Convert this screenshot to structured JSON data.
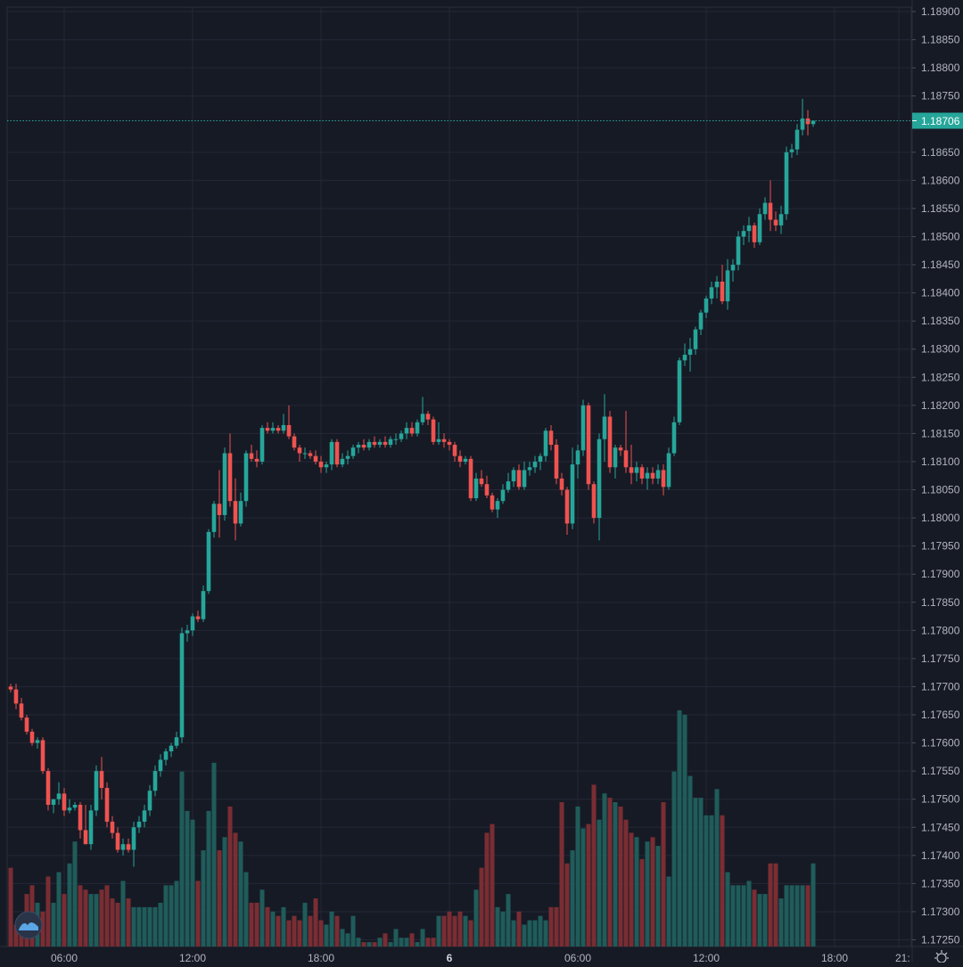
{
  "chart_data": {
    "type": "candlestick",
    "title": "",
    "xlabel": "",
    "ylabel": "",
    "ylim": [
      1.17225,
      1.18915
    ],
    "grid": true,
    "last_price": 1.18706,
    "last_price_label": "1.18706",
    "price_ticks": [
      "1.18900",
      "1.18850",
      "1.18800",
      "1.18750",
      "1.18650",
      "1.18600",
      "1.18550",
      "1.18500",
      "1.18450",
      "1.18400",
      "1.18350",
      "1.18300",
      "1.18250",
      "1.18200",
      "1.18150",
      "1.18100",
      "1.18050",
      "1.18000",
      "1.17950",
      "1.17900",
      "1.17850",
      "1.17800",
      "1.17750",
      "1.17700",
      "1.17650",
      "1.17600",
      "1.17550",
      "1.17500",
      "1.17450",
      "1.17400",
      "1.17350",
      "1.17300",
      "1.17250"
    ],
    "time_ticks": [
      {
        "label": "06:00",
        "bar": 10,
        "bold": false
      },
      {
        "label": "12:00",
        "bar": 34,
        "bold": false
      },
      {
        "label": "18:00",
        "bar": 58,
        "bold": false
      },
      {
        "label": "6",
        "bar": 82,
        "bold": true
      },
      {
        "label": "06:00",
        "bar": 106,
        "bold": false
      },
      {
        "label": "12:00",
        "bar": 130,
        "bold": false
      },
      {
        "label": "18:00",
        "bar": 154,
        "bold": false
      },
      {
        "label": "21:",
        "bar": 166,
        "bold": false
      }
    ],
    "colors": {
      "up": "#26a69a",
      "down": "#ef5350",
      "vol_up": "#1f5c5a",
      "vol_down": "#7a2d33",
      "grid": "#242836",
      "text": "#b2b5be",
      "background": "#161a25"
    },
    "candles": [
      [
        1.177,
        1.17705,
        1.1769,
        1.17695
      ],
      [
        1.17695,
        1.17705,
        1.1766,
        1.1767
      ],
      [
        1.1767,
        1.1768,
        1.1764,
        1.17645
      ],
      [
        1.17645,
        1.1765,
        1.17615,
        1.1762
      ],
      [
        1.1762,
        1.17625,
        1.17595,
        1.176
      ],
      [
        1.176,
        1.1761,
        1.1759,
        1.17605
      ],
      [
        1.17605,
        1.1761,
        1.17545,
        1.1755
      ],
      [
        1.1755,
        1.17555,
        1.1748,
        1.1749
      ],
      [
        1.1749,
        1.175,
        1.17475,
        1.175
      ],
      [
        1.175,
        1.1753,
        1.1749,
        1.1751
      ],
      [
        1.1751,
        1.1752,
        1.1747,
        1.1748
      ],
      [
        1.1748,
        1.175,
        1.17475,
        1.17485
      ],
      [
        1.17485,
        1.17495,
        1.1748,
        1.1749
      ],
      [
        1.1749,
        1.17495,
        1.1743,
        1.17445
      ],
      [
        1.17445,
        1.1749,
        1.1742,
        1.1742
      ],
      [
        1.1742,
        1.1749,
        1.1741,
        1.1748
      ],
      [
        1.1748,
        1.1756,
        1.1747,
        1.1755
      ],
      [
        1.1755,
        1.17575,
        1.175,
        1.1752
      ],
      [
        1.1752,
        1.1753,
        1.1745,
        1.1746
      ],
      [
        1.1746,
        1.1747,
        1.1743,
        1.1744
      ],
      [
        1.1744,
        1.1745,
        1.17405,
        1.1741
      ],
      [
        1.1741,
        1.1743,
        1.174,
        1.1742
      ],
      [
        1.1742,
        1.1743,
        1.17405,
        1.1741
      ],
      [
        1.1741,
        1.1746,
        1.1738,
        1.1745
      ],
      [
        1.1745,
        1.1747,
        1.1744,
        1.1746
      ],
      [
        1.1746,
        1.1749,
        1.1745,
        1.1748
      ],
      [
        1.1748,
        1.17525,
        1.1747,
        1.17515
      ],
      [
        1.17515,
        1.1756,
        1.17505,
        1.1755
      ],
      [
        1.1755,
        1.1758,
        1.1754,
        1.1757
      ],
      [
        1.1757,
        1.1759,
        1.1756,
        1.17585
      ],
      [
        1.17585,
        1.176,
        1.17575,
        1.17595
      ],
      [
        1.17595,
        1.1762,
        1.1759,
        1.1761
      ],
      [
        1.1761,
        1.17805,
        1.176,
        1.17795
      ],
      [
        1.17795,
        1.1781,
        1.1778,
        1.178
      ],
      [
        1.178,
        1.1783,
        1.1779,
        1.17825
      ],
      [
        1.17825,
        1.17835,
        1.17815,
        1.1782
      ],
      [
        1.1782,
        1.1788,
        1.17815,
        1.1787
      ],
      [
        1.1787,
        1.1798,
        1.17865,
        1.17975
      ],
      [
        1.17975,
        1.1803,
        1.17965,
        1.18025
      ],
      [
        1.18025,
        1.18085,
        1.17965,
        1.18005
      ],
      [
        1.18005,
        1.18125,
        1.17995,
        1.18115
      ],
      [
        1.18115,
        1.1815,
        1.1802,
        1.1803
      ],
      [
        1.1803,
        1.1807,
        1.1796,
        1.1799
      ],
      [
        1.1799,
        1.18045,
        1.17985,
        1.1803
      ],
      [
        1.1803,
        1.1812,
        1.1802,
        1.18115
      ],
      [
        1.18115,
        1.1813,
        1.181,
        1.18105
      ],
      [
        1.18105,
        1.1812,
        1.1809,
        1.181
      ],
      [
        1.181,
        1.18165,
        1.18095,
        1.1816
      ],
      [
        1.1816,
        1.1817,
        1.1815,
        1.18155
      ],
      [
        1.18155,
        1.1817,
        1.1815,
        1.1816
      ],
      [
        1.1816,
        1.18165,
        1.1815,
        1.18155
      ],
      [
        1.18155,
        1.18185,
        1.1815,
        1.18165
      ],
      [
        1.18165,
        1.182,
        1.1814,
        1.18145
      ],
      [
        1.18145,
        1.1815,
        1.1812,
        1.18125
      ],
      [
        1.18125,
        1.1813,
        1.181,
        1.18115
      ],
      [
        1.18115,
        1.18125,
        1.18105,
        1.18115
      ],
      [
        1.18115,
        1.1812,
        1.18105,
        1.1811
      ],
      [
        1.1811,
        1.1812,
        1.18095,
        1.181
      ],
      [
        1.181,
        1.1811,
        1.1808,
        1.1809
      ],
      [
        1.1809,
        1.181,
        1.1808,
        1.18095
      ],
      [
        1.18095,
        1.1814,
        1.18085,
        1.18135
      ],
      [
        1.18135,
        1.1814,
        1.1809,
        1.18095
      ],
      [
        1.18095,
        1.18115,
        1.1809,
        1.18105
      ],
      [
        1.18105,
        1.1812,
        1.18095,
        1.1811
      ],
      [
        1.1811,
        1.1813,
        1.18105,
        1.18125
      ],
      [
        1.18125,
        1.18135,
        1.18115,
        1.1813
      ],
      [
        1.1813,
        1.1814,
        1.1812,
        1.18125
      ],
      [
        1.18125,
        1.1814,
        1.1812,
        1.18135
      ],
      [
        1.18135,
        1.18145,
        1.18125,
        1.1813
      ],
      [
        1.1813,
        1.1814,
        1.18125,
        1.18135
      ],
      [
        1.18135,
        1.18145,
        1.18125,
        1.1813
      ],
      [
        1.1813,
        1.18145,
        1.18125,
        1.1814
      ],
      [
        1.1814,
        1.1815,
        1.1813,
        1.1814
      ],
      [
        1.1814,
        1.18155,
        1.18135,
        1.1815
      ],
      [
        1.1815,
        1.1817,
        1.1814,
        1.1816
      ],
      [
        1.1816,
        1.1817,
        1.18145,
        1.1815
      ],
      [
        1.1815,
        1.18175,
        1.18145,
        1.1817
      ],
      [
        1.1817,
        1.18215,
        1.18165,
        1.18185
      ],
      [
        1.18185,
        1.1819,
        1.18165,
        1.18175
      ],
      [
        1.18175,
        1.1818,
        1.1813,
        1.18135
      ],
      [
        1.18135,
        1.1817,
        1.1813,
        1.1814
      ],
      [
        1.1814,
        1.1815,
        1.18125,
        1.18135
      ],
      [
        1.18135,
        1.1814,
        1.1812,
        1.1813
      ],
      [
        1.1813,
        1.18135,
        1.181,
        1.1811
      ],
      [
        1.1811,
        1.1812,
        1.1809,
        1.181
      ],
      [
        1.181,
        1.1811,
        1.18095,
        1.18105
      ],
      [
        1.18105,
        1.1811,
        1.1803,
        1.18035
      ],
      [
        1.18035,
        1.1808,
        1.1803,
        1.1807
      ],
      [
        1.1807,
        1.18085,
        1.18055,
        1.1806
      ],
      [
        1.1806,
        1.18075,
        1.18035,
        1.1804
      ],
      [
        1.1804,
        1.18045,
        1.1801,
        1.18015
      ],
      [
        1.18015,
        1.18035,
        1.18,
        1.1803
      ],
      [
        1.1803,
        1.1806,
        1.18025,
        1.1805
      ],
      [
        1.1805,
        1.1808,
        1.18045,
        1.18065
      ],
      [
        1.18065,
        1.1809,
        1.18055,
        1.18085
      ],
      [
        1.18085,
        1.18095,
        1.1805,
        1.18055
      ],
      [
        1.18055,
        1.181,
        1.1805,
        1.18085
      ],
      [
        1.18085,
        1.181,
        1.18075,
        1.1809
      ],
      [
        1.1809,
        1.1811,
        1.1808,
        1.181
      ],
      [
        1.181,
        1.18115,
        1.18085,
        1.1811
      ],
      [
        1.1811,
        1.1816,
        1.181,
        1.18155
      ],
      [
        1.18155,
        1.18165,
        1.1812,
        1.1813
      ],
      [
        1.1813,
        1.1814,
        1.1806,
        1.1807
      ],
      [
        1.1807,
        1.1808,
        1.1804,
        1.1805
      ],
      [
        1.1805,
        1.18055,
        1.1797,
        1.1799
      ],
      [
        1.1799,
        1.18125,
        1.1798,
        1.18095
      ],
      [
        1.18095,
        1.1813,
        1.1807,
        1.1812
      ],
      [
        1.1812,
        1.1821,
        1.1811,
        1.182
      ],
      [
        1.182,
        1.18205,
        1.1805,
        1.1806
      ],
      [
        1.1806,
        1.18065,
        1.1799,
        1.18
      ],
      [
        1.18,
        1.1815,
        1.1796,
        1.1814
      ],
      [
        1.1814,
        1.1822,
        1.181,
        1.1818
      ],
      [
        1.1818,
        1.1819,
        1.1808,
        1.1809
      ],
      [
        1.1809,
        1.1813,
        1.1807,
        1.18125
      ],
      [
        1.18125,
        1.1813,
        1.1811,
        1.1812
      ],
      [
        1.1812,
        1.1819,
        1.1808,
        1.1809
      ],
      [
        1.1809,
        1.1813,
        1.1806,
        1.1808
      ],
      [
        1.1808,
        1.181,
        1.18065,
        1.1809
      ],
      [
        1.1809,
        1.18095,
        1.1806,
        1.1807
      ],
      [
        1.1807,
        1.1809,
        1.1805,
        1.1808
      ],
      [
        1.1808,
        1.1809,
        1.1806,
        1.1807
      ],
      [
        1.1807,
        1.18095,
        1.1806,
        1.18085
      ],
      [
        1.18085,
        1.18095,
        1.1804,
        1.18055
      ],
      [
        1.18055,
        1.18125,
        1.1805,
        1.18115
      ],
      [
        1.18115,
        1.1818,
        1.1811,
        1.1817
      ],
      [
        1.1817,
        1.18285,
        1.18165,
        1.1828
      ],
      [
        1.1828,
        1.1831,
        1.1827,
        1.1829
      ],
      [
        1.1829,
        1.1832,
        1.1826,
        1.183
      ],
      [
        1.183,
        1.1834,
        1.1829,
        1.18335
      ],
      [
        1.18335,
        1.1837,
        1.18325,
        1.18365
      ],
      [
        1.18365,
        1.18395,
        1.18355,
        1.1839
      ],
      [
        1.1839,
        1.1842,
        1.1838,
        1.1841
      ],
      [
        1.1841,
        1.1843,
        1.1839,
        1.1842
      ],
      [
        1.1842,
        1.1845,
        1.1838,
        1.18385
      ],
      [
        1.18385,
        1.1846,
        1.1837,
        1.1844
      ],
      [
        1.1844,
        1.1846,
        1.1842,
        1.1845
      ],
      [
        1.1845,
        1.1851,
        1.1844,
        1.185
      ],
      [
        1.185,
        1.1852,
        1.18485,
        1.1851
      ],
      [
        1.1851,
        1.18535,
        1.1849,
        1.1852
      ],
      [
        1.1852,
        1.18525,
        1.1848,
        1.1849
      ],
      [
        1.1849,
        1.1855,
        1.18485,
        1.1854
      ],
      [
        1.1854,
        1.1857,
        1.1853,
        1.1856
      ],
      [
        1.1856,
        1.186,
        1.1851,
        1.1853
      ],
      [
        1.1853,
        1.18545,
        1.1851,
        1.1852
      ],
      [
        1.1852,
        1.18555,
        1.18505,
        1.1854
      ],
      [
        1.1854,
        1.1866,
        1.1853,
        1.1865
      ],
      [
        1.1865,
        1.18665,
        1.1864,
        1.18655
      ],
      [
        1.18655,
        1.187,
        1.18645,
        1.1869
      ],
      [
        1.1869,
        1.18745,
        1.1868,
        1.1871
      ],
      [
        1.1871,
        1.18725,
        1.1868,
        1.187
      ],
      [
        1.187,
        1.18706,
        1.18695,
        1.18706
      ]
    ],
    "volume": [
      90,
      25,
      22,
      60,
      70,
      50,
      40,
      80,
      50,
      85,
      60,
      95,
      120,
      70,
      65,
      60,
      60,
      65,
      70,
      55,
      50,
      75,
      55,
      45,
      45,
      45,
      45,
      45,
      50,
      70,
      70,
      75,
      200,
      155,
      145,
      75,
      110,
      155,
      210,
      110,
      125,
      160,
      130,
      120,
      85,
      50,
      50,
      65,
      45,
      40,
      35,
      45,
      30,
      35,
      30,
      50,
      35,
      55,
      30,
      25,
      40,
      35,
      20,
      15,
      35,
      10,
      5,
      5,
      5,
      10,
      15,
      5,
      20,
      10,
      10,
      15,
      5,
      20,
      10,
      10,
      35,
      35,
      40,
      35,
      40,
      35,
      30,
      65,
      90,
      130,
      140,
      45,
      40,
      60,
      30,
      40,
      25,
      30,
      30,
      35,
      30,
      45,
      45,
      165,
      95,
      110,
      160,
      135,
      140,
      185,
      145,
      175,
      170,
      165,
      160,
      145,
      130,
      125,
      100,
      120,
      125,
      115,
      165,
      80,
      200,
      270,
      265,
      195,
      170,
      170,
      150,
      150,
      180,
      150,
      85,
      70,
      70,
      70,
      75,
      65,
      60,
      60,
      95,
      95,
      55,
      70,
      70,
      70,
      70,
      70,
      95,
      10
    ]
  }
}
